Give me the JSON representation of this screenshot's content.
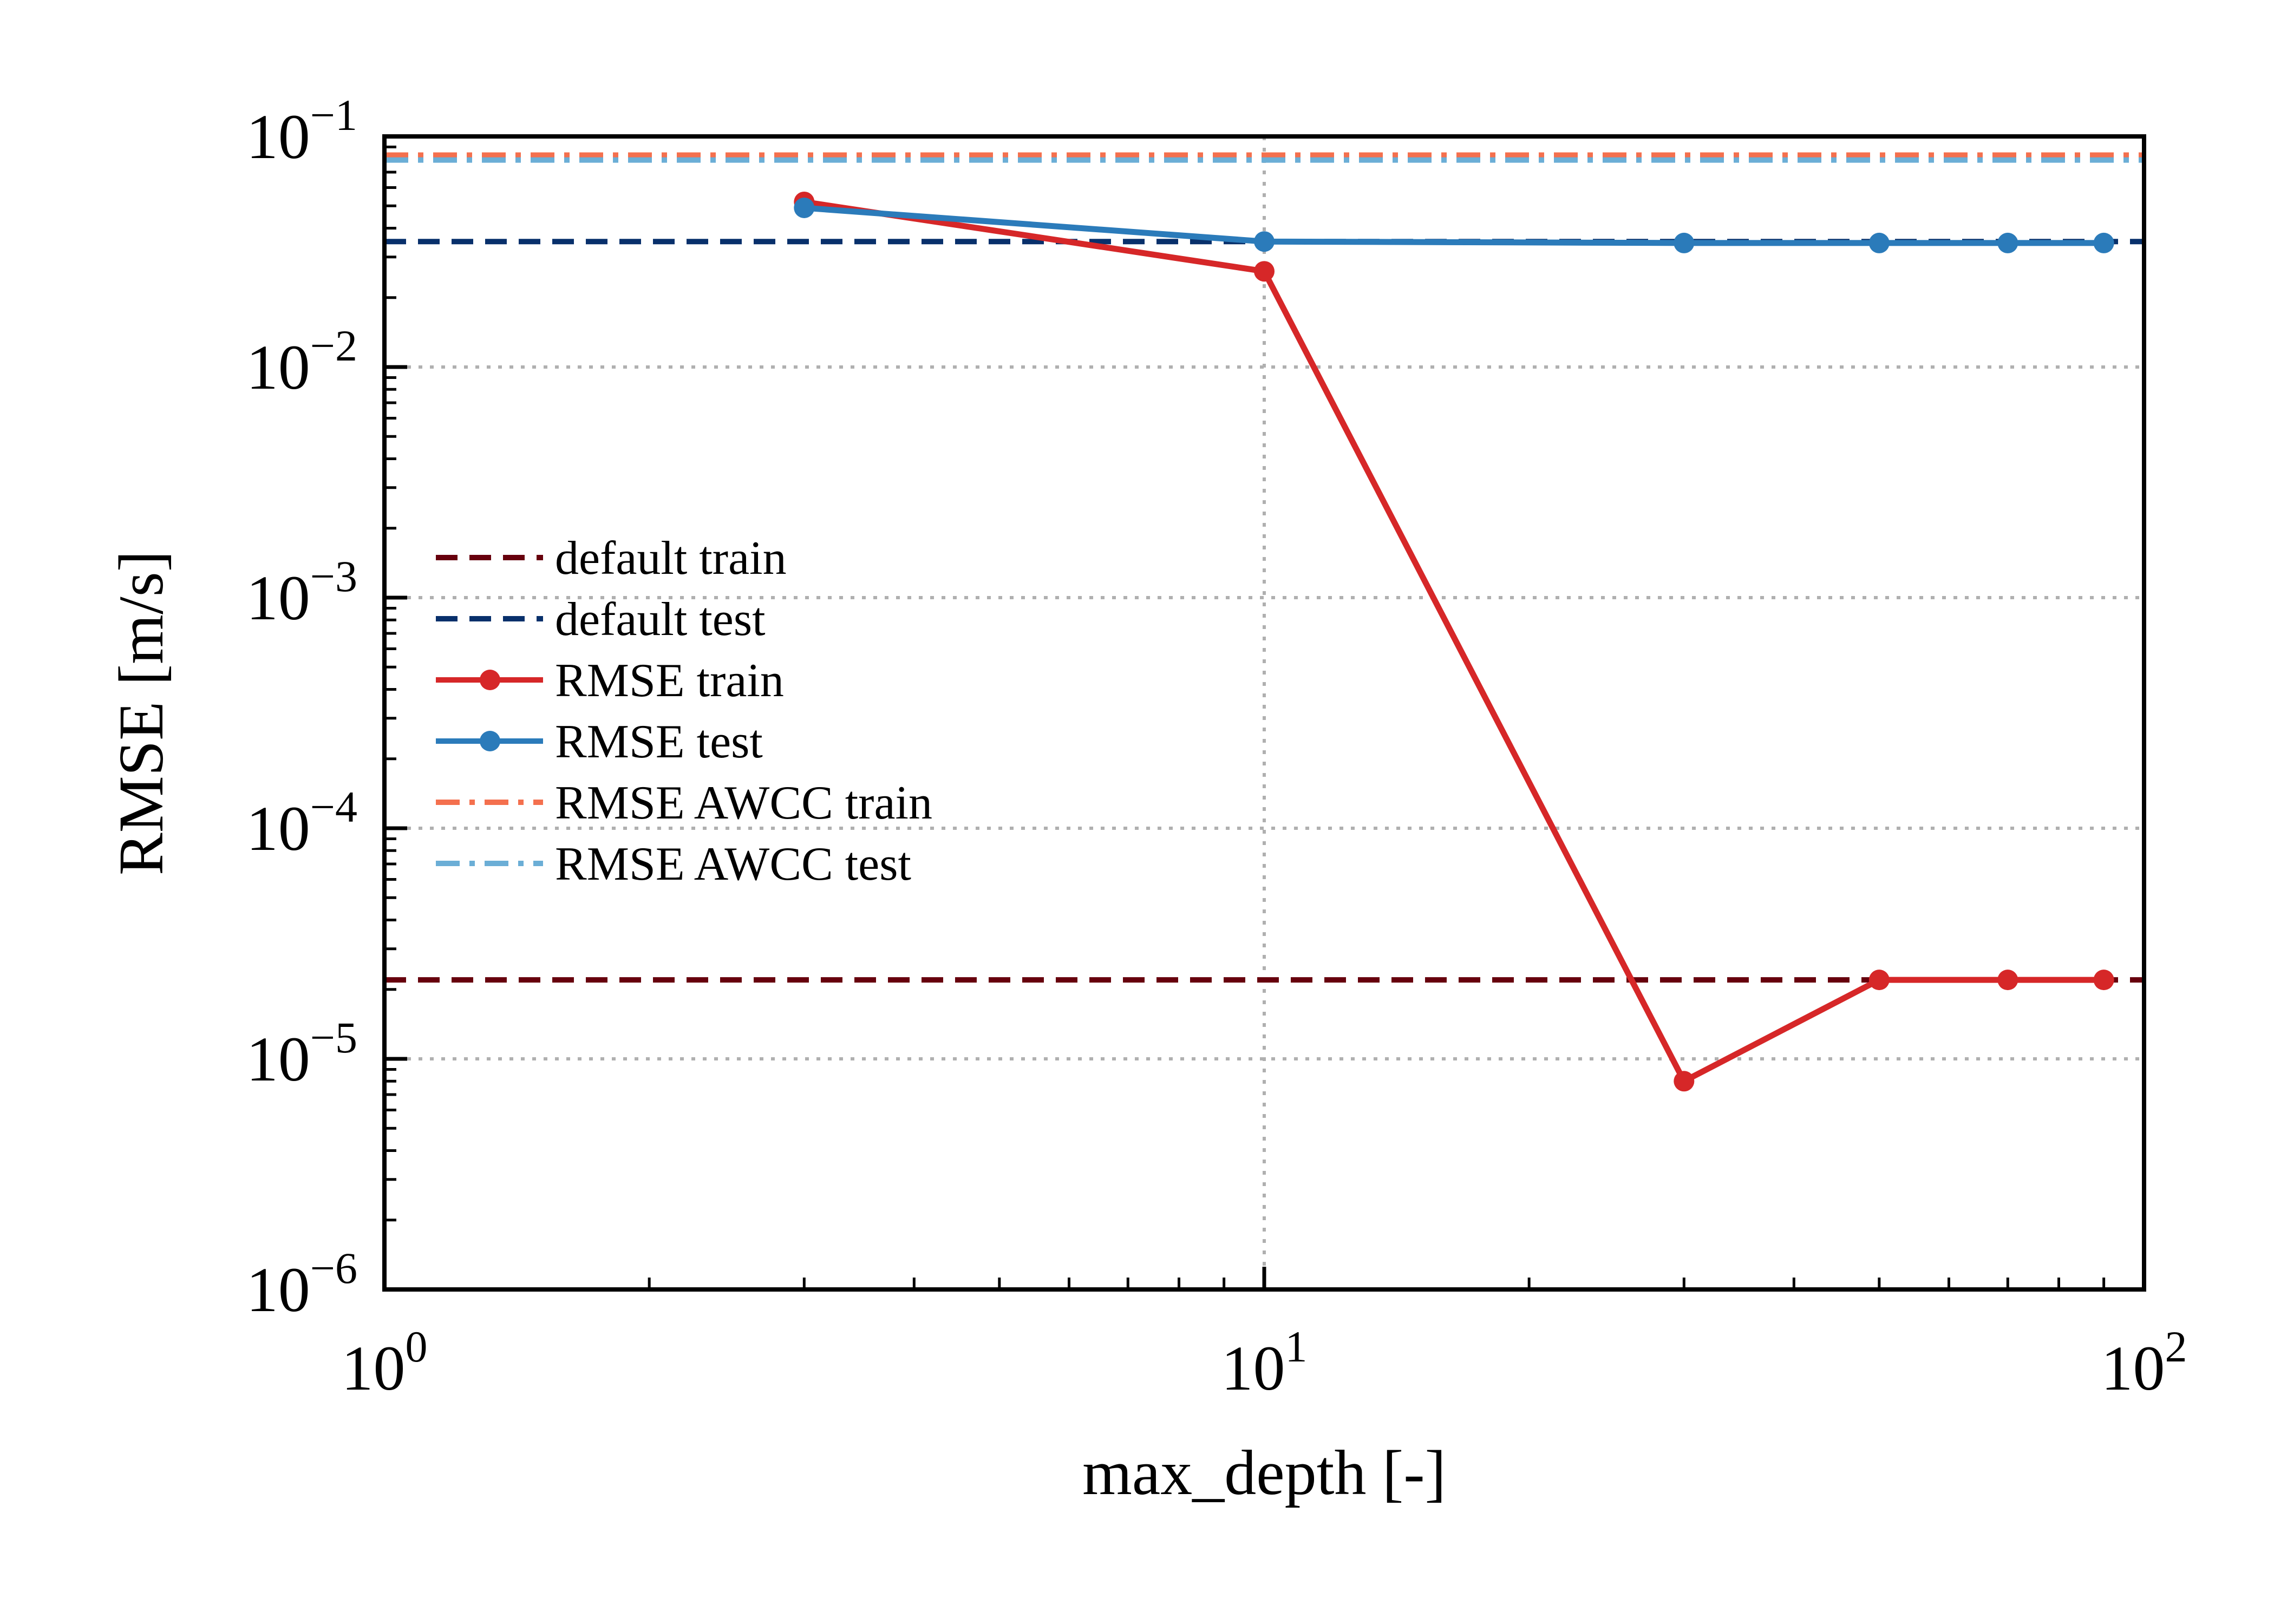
{
  "chart_data": {
    "type": "line",
    "xscale": "log",
    "yscale": "log",
    "xlabel": "max_depth [-]",
    "ylabel": "RMSE [m/s]",
    "xlim": [
      1,
      100
    ],
    "ylim": [
      1e-06,
      0.1
    ],
    "x_ticks": [
      {
        "base": "10",
        "exp": "0",
        "value": 1
      },
      {
        "base": "10",
        "exp": "1",
        "value": 10
      },
      {
        "base": "10",
        "exp": "2",
        "value": 100
      }
    ],
    "y_ticks": [
      {
        "base": "10",
        "exp": "−6",
        "value": 1e-06
      },
      {
        "base": "10",
        "exp": "−5",
        "value": 1e-05
      },
      {
        "base": "10",
        "exp": "−4",
        "value": 0.0001
      },
      {
        "base": "10",
        "exp": "−3",
        "value": 0.001
      },
      {
        "base": "10",
        "exp": "−2",
        "value": 0.01
      },
      {
        "base": "10",
        "exp": "−1",
        "value": 0.1
      }
    ],
    "grid": true,
    "legend_position": "center-left",
    "series": [
      {
        "name": "default train",
        "kind": "hline",
        "y": 2.2e-05,
        "color": "#67000d",
        "dash": "dashed",
        "marker": false
      },
      {
        "name": "default test",
        "kind": "hline",
        "y": 0.035,
        "color": "#08306b",
        "dash": "dashed",
        "marker": false
      },
      {
        "name": "RMSE train",
        "kind": "line",
        "x": [
          3,
          10,
          30,
          50,
          70,
          90
        ],
        "y": [
          0.052,
          0.026,
          8e-06,
          2.2e-05,
          2.2e-05,
          2.2e-05
        ],
        "color": "#d62728",
        "dash": "solid",
        "marker": true
      },
      {
        "name": "RMSE test",
        "kind": "line",
        "x": [
          3,
          10,
          30,
          50,
          70,
          90
        ],
        "y": [
          0.049,
          0.035,
          0.0345,
          0.0345,
          0.0345,
          0.0345
        ],
        "color": "#2b7bba",
        "dash": "solid",
        "marker": true
      },
      {
        "name": "RMSE AWCC train",
        "kind": "hline",
        "y": 0.083,
        "color": "#f4704e",
        "dash": "dashdot",
        "marker": false
      },
      {
        "name": "RMSE AWCC test",
        "kind": "hline",
        "y": 0.079,
        "color": "#6baed6",
        "dash": "dashdot",
        "marker": false
      }
    ]
  }
}
